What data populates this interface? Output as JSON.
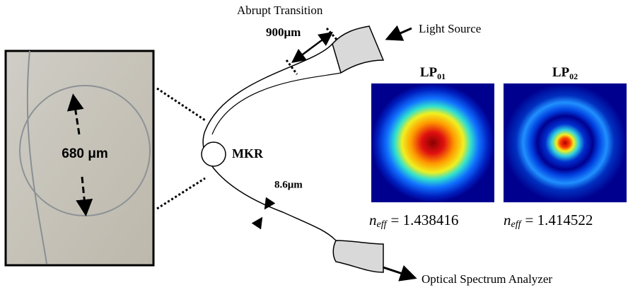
{
  "labels": {
    "abrupt_transition": "Abrupt Transition",
    "taper_length": "900μm",
    "light_source": "Light Source",
    "ring_diameter": "680 μm",
    "mkr": "MKR",
    "fiber_diameter": "8.6μm",
    "analyzer": "Optical Spectrum Analyzer"
  },
  "modes": [
    {
      "name": "LP",
      "sub": "01",
      "neff_symbol": "n",
      "neff_sub": "eff",
      "neff_value": "= 1.438416"
    },
    {
      "name": "LP",
      "sub": "02",
      "neff_symbol": "n",
      "neff_sub": "eff",
      "neff_value": "= 1.414522"
    }
  ]
}
